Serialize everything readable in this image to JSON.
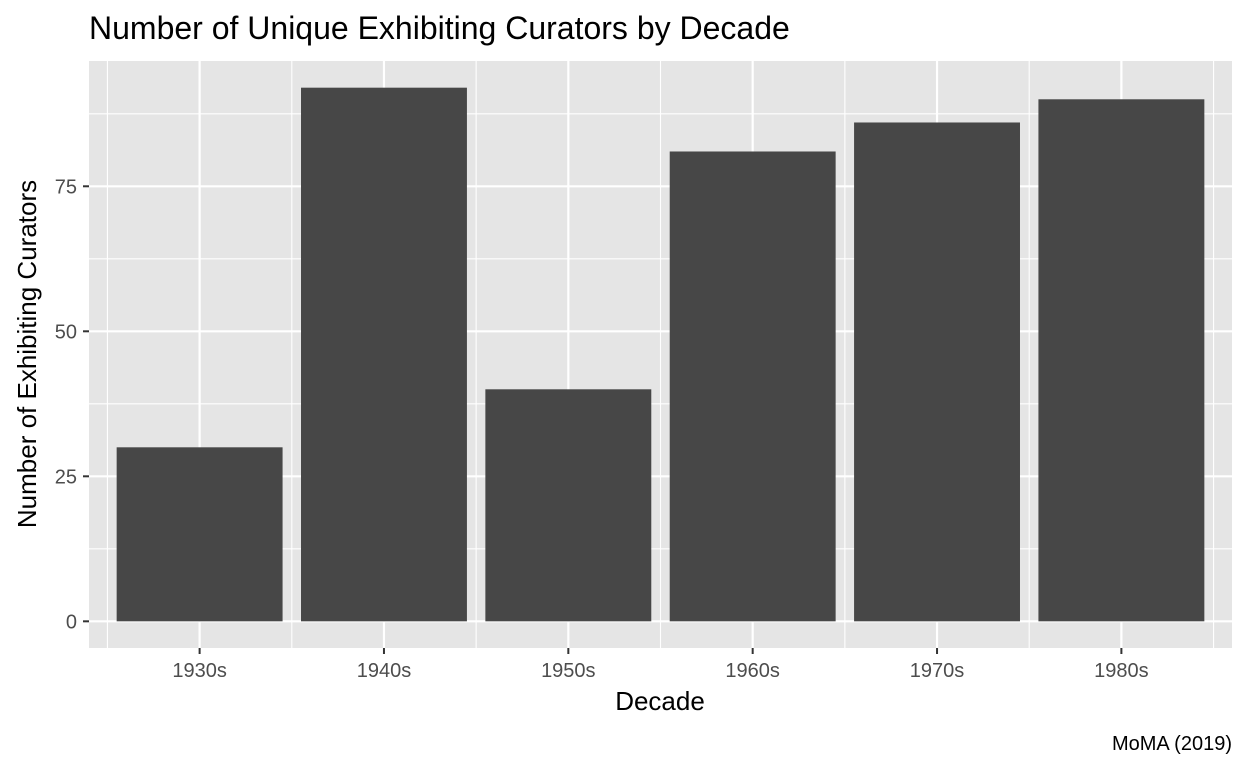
{
  "chart_data": {
    "type": "bar",
    "title": "Number of Unique Exhibiting Curators by Decade",
    "xlabel": "Decade",
    "ylabel": "Number of Exhibiting Curators",
    "caption": "MoMA (2019)",
    "categories": [
      "1930s",
      "1940s",
      "1950s",
      "1960s",
      "1970s",
      "1980s"
    ],
    "values": [
      30,
      92,
      40,
      81,
      86,
      90
    ],
    "ylim": [
      -4.6,
      96.6
    ],
    "y_ticks": [
      0,
      25,
      50,
      75
    ],
    "y_tick_labels": [
      "0",
      "25",
      "50",
      "75"
    ],
    "grid": true,
    "legend": "none",
    "colors": {
      "bar": "#474747",
      "panel": "#e5e5e5",
      "grid": "#ffffff",
      "tick_text": "#4d4d4d",
      "tick_mark": "#333333"
    }
  }
}
